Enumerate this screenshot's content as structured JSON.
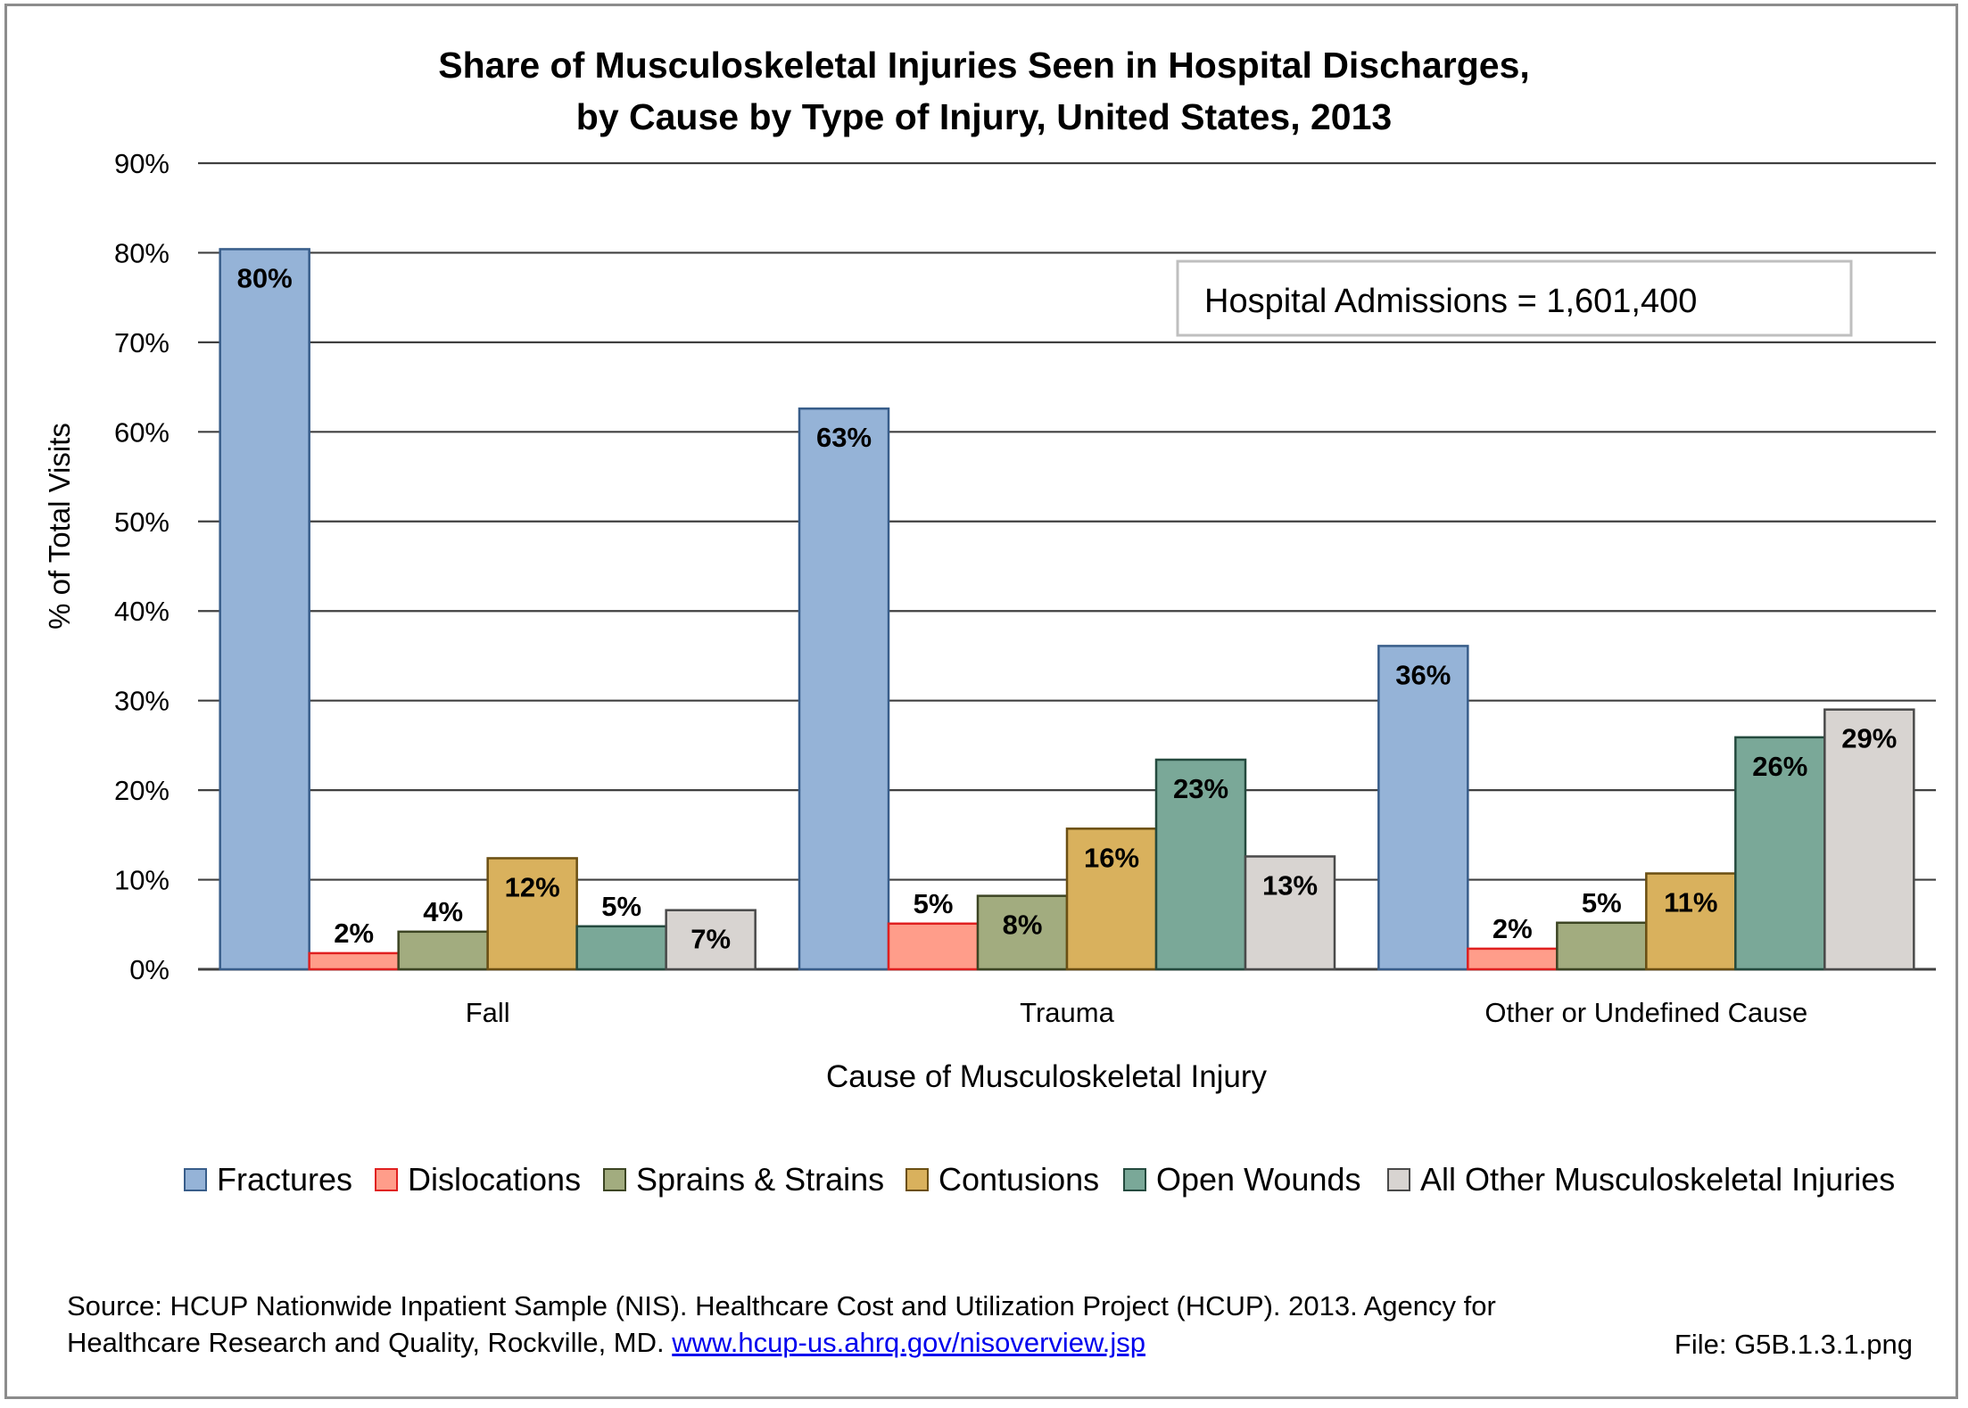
{
  "chart_data": {
    "type": "bar",
    "title_lines": [
      "Share of Musculoskeletal Injuries Seen in Hospital Discharges,",
      "by Cause by Type of Injury, United States, 2013"
    ],
    "xlabel": "Cause of Musculoskeletal Injury",
    "ylabel": "% of Total Visits",
    "ylim": [
      0,
      90
    ],
    "yticks": [
      0,
      10,
      20,
      30,
      40,
      50,
      60,
      70,
      80,
      90
    ],
    "ytick_labels": [
      "0%",
      "10%",
      "20%",
      "30%",
      "40%",
      "50%",
      "60%",
      "70%",
      "80%",
      "90%"
    ],
    "grid": true,
    "legend_position": "bottom",
    "categories": [
      "Fall",
      "Trauma",
      "Other or Undefined Cause"
    ],
    "series": [
      {
        "name": "Fractures",
        "color": "#95b3d7",
        "stroke": "#385d8a",
        "values": [
          80.4,
          62.6,
          36.1
        ],
        "labels": [
          "80%",
          "63%",
          "36%"
        ]
      },
      {
        "name": "Dislocations",
        "color": "#ff9d8a",
        "stroke": "#e02020",
        "values": [
          1.8,
          5.1,
          2.3
        ],
        "labels": [
          "2%",
          "5%",
          "2%"
        ]
      },
      {
        "name": "Sprains & Strains",
        "color": "#a2ac7f",
        "stroke": "#3c4523",
        "values": [
          4.2,
          8.2,
          5.2
        ],
        "labels": [
          "4%",
          "8%",
          "5%"
        ]
      },
      {
        "name": "Contusions",
        "color": "#d9b15d",
        "stroke": "#6b4f13",
        "values": [
          12.4,
          15.7,
          10.7
        ],
        "labels": [
          "12%",
          "16%",
          "11%"
        ]
      },
      {
        "name": "Open Wounds",
        "color": "#7aa898",
        "stroke": "#244a3e",
        "values": [
          4.8,
          23.4,
          25.9
        ],
        "labels": [
          "5%",
          "23%",
          "26%"
        ]
      },
      {
        "name": "All Other Musculoskeletal Injuries",
        "color": "#d8d4d1",
        "stroke": "#4a4a4a",
        "values": [
          6.6,
          12.6,
          29.0
        ],
        "labels": [
          "7%",
          "13%",
          "29%"
        ]
      }
    ],
    "annotation": "Hospital Admissions = 1,601,400"
  },
  "footer": {
    "source_line1": "Source: HCUP Nationwide Inpatient Sample (NIS). Healthcare Cost and Utilization Project (HCUP). 2013. Agency for",
    "source_line2": "Healthcare Research and Quality, Rockville, MD.",
    "source_link": "www.hcup-us.ahrq.gov/nisoverview.jsp",
    "file_label": "File: G5B.1.3.1.png"
  }
}
